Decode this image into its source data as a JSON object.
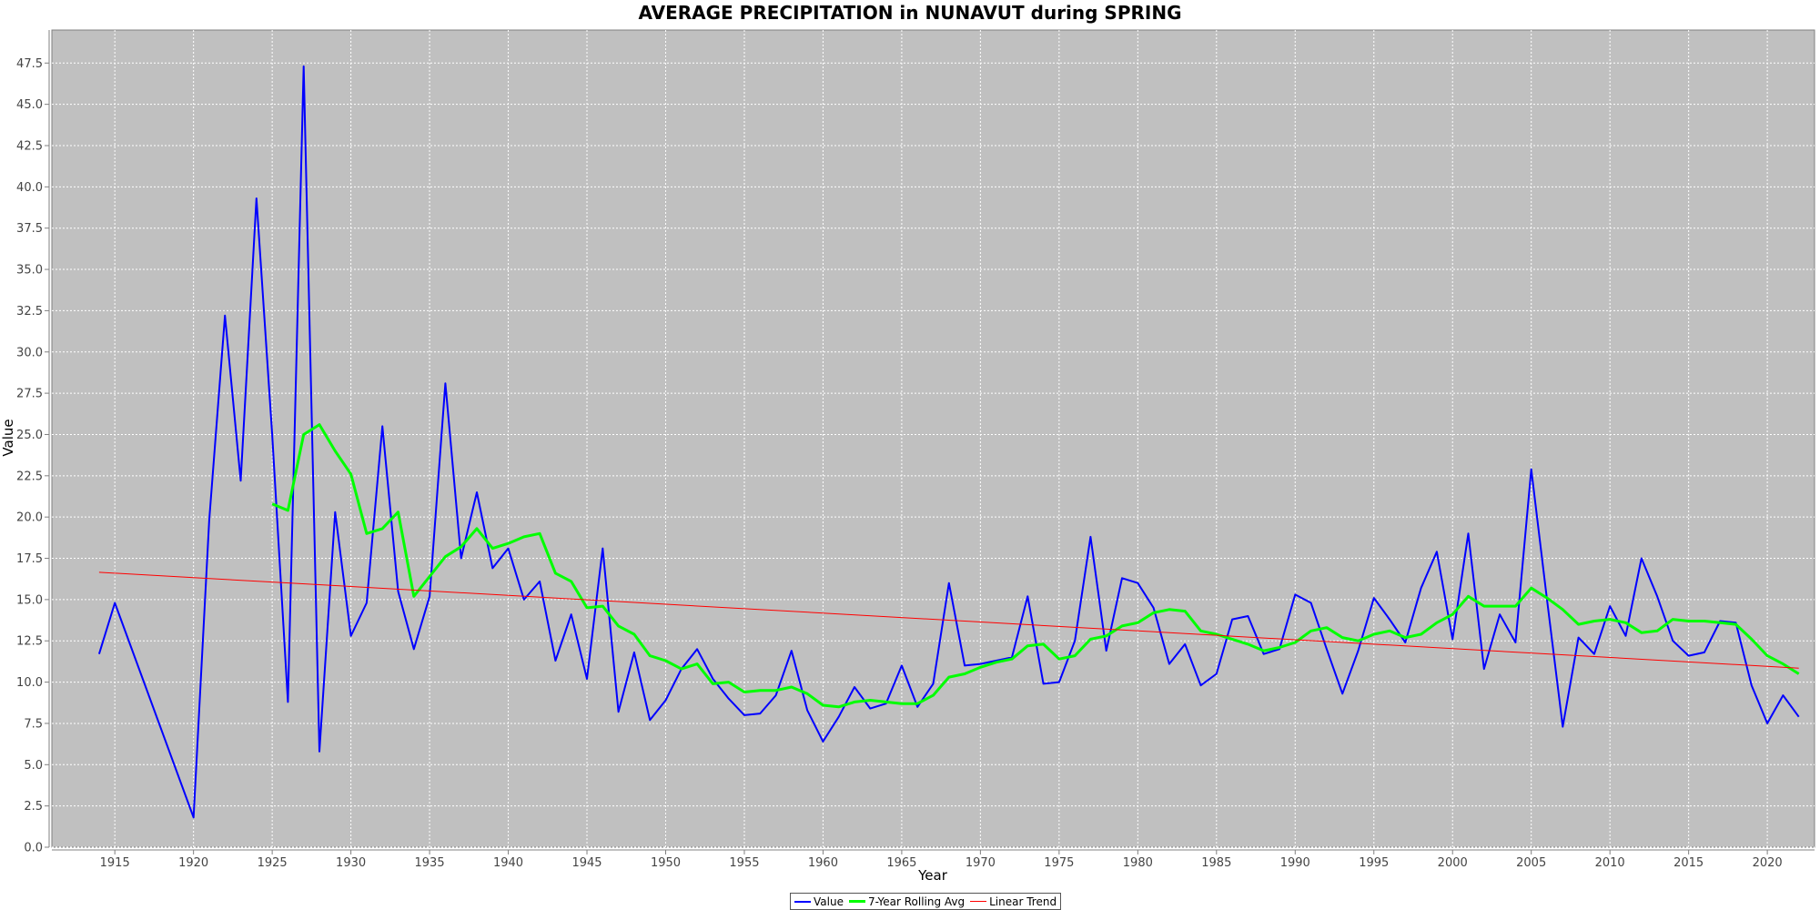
{
  "chart_data": {
    "type": "line",
    "title": "AVERAGE PRECIPITATION in NUNAVUT during SPRING",
    "xlabel": "Year",
    "ylabel": "Value",
    "xlim": [
      1911,
      2023
    ],
    "ylim": [
      0,
      49.5
    ],
    "x_ticks": [
      1915,
      1920,
      1925,
      1930,
      1935,
      1940,
      1945,
      1950,
      1955,
      1960,
      1965,
      1970,
      1975,
      1980,
      1985,
      1990,
      1995,
      2000,
      2005,
      2010,
      2015,
      2020
    ],
    "y_ticks": [
      0.0,
      2.5,
      5.0,
      7.5,
      10.0,
      12.5,
      15.0,
      17.5,
      20.0,
      22.5,
      25.0,
      27.5,
      30.0,
      32.5,
      35.0,
      37.5,
      40.0,
      42.5,
      45.0,
      47.5
    ],
    "grid": true,
    "legend_position": "bottom-center",
    "background": "#c0c0c0",
    "series": [
      {
        "name": "Value",
        "color": "#0000ff",
        "points": [
          [
            1914,
            11.7
          ],
          [
            1915,
            14.8
          ],
          [
            1920,
            1.8
          ],
          [
            1921,
            19.8
          ],
          [
            1922,
            32.2
          ],
          [
            1923,
            22.2
          ],
          [
            1924,
            39.3
          ],
          [
            1925,
            25.0
          ],
          [
            1926,
            8.8
          ],
          [
            1927,
            47.3
          ],
          [
            1928,
            5.8
          ],
          [
            1929,
            20.3
          ],
          [
            1930,
            12.8
          ],
          [
            1931,
            14.8
          ],
          [
            1932,
            25.5
          ],
          [
            1933,
            15.5
          ],
          [
            1934,
            12.0
          ],
          [
            1935,
            15.2
          ],
          [
            1936,
            28.1
          ],
          [
            1937,
            17.5
          ],
          [
            1938,
            21.5
          ],
          [
            1939,
            16.9
          ],
          [
            1940,
            18.1
          ],
          [
            1941,
            15.0
          ],
          [
            1942,
            16.1
          ],
          [
            1943,
            11.3
          ],
          [
            1944,
            14.1
          ],
          [
            1945,
            10.2
          ],
          [
            1946,
            18.1
          ],
          [
            1947,
            8.2
          ],
          [
            1948,
            11.8
          ],
          [
            1949,
            7.7
          ],
          [
            1950,
            8.9
          ],
          [
            1951,
            10.8
          ],
          [
            1952,
            12.0
          ],
          [
            1953,
            10.2
          ],
          [
            1954,
            9.0
          ],
          [
            1955,
            8.0
          ],
          [
            1956,
            8.1
          ],
          [
            1957,
            9.2
          ],
          [
            1958,
            11.9
          ],
          [
            1959,
            8.3
          ],
          [
            1960,
            6.4
          ],
          [
            1961,
            7.9
          ],
          [
            1962,
            9.7
          ],
          [
            1963,
            8.4
          ],
          [
            1964,
            8.7
          ],
          [
            1965,
            11.0
          ],
          [
            1966,
            8.5
          ],
          [
            1967,
            9.9
          ],
          [
            1968,
            16.0
          ],
          [
            1969,
            11.0
          ],
          [
            1970,
            11.1
          ],
          [
            1971,
            11.3
          ],
          [
            1972,
            11.5
          ],
          [
            1973,
            15.2
          ],
          [
            1974,
            9.9
          ],
          [
            1975,
            10.0
          ],
          [
            1976,
            12.5
          ],
          [
            1977,
            18.8
          ],
          [
            1978,
            11.9
          ],
          [
            1979,
            16.3
          ],
          [
            1980,
            16.0
          ],
          [
            1981,
            14.5
          ],
          [
            1982,
            11.1
          ],
          [
            1983,
            12.3
          ],
          [
            1984,
            9.8
          ],
          [
            1985,
            10.5
          ],
          [
            1986,
            13.8
          ],
          [
            1987,
            14.0
          ],
          [
            1988,
            11.7
          ],
          [
            1989,
            12.0
          ],
          [
            1990,
            15.3
          ],
          [
            1991,
            14.8
          ],
          [
            1992,
            12.0
          ],
          [
            1993,
            9.3
          ],
          [
            1994,
            11.9
          ],
          [
            1995,
            15.1
          ],
          [
            1996,
            13.8
          ],
          [
            1997,
            12.4
          ],
          [
            1998,
            15.7
          ],
          [
            1999,
            17.9
          ],
          [
            2000,
            12.6
          ],
          [
            2001,
            19.0
          ],
          [
            2002,
            10.8
          ],
          [
            2003,
            14.1
          ],
          [
            2004,
            12.4
          ],
          [
            2005,
            22.9
          ],
          [
            2006,
            15.0
          ],
          [
            2007,
            7.3
          ],
          [
            2008,
            12.7
          ],
          [
            2009,
            11.7
          ],
          [
            2010,
            14.6
          ],
          [
            2011,
            12.8
          ],
          [
            2012,
            17.5
          ],
          [
            2013,
            15.2
          ],
          [
            2014,
            12.5
          ],
          [
            2015,
            11.6
          ],
          [
            2016,
            11.8
          ],
          [
            2017,
            13.7
          ],
          [
            2018,
            13.6
          ],
          [
            2019,
            9.8
          ],
          [
            2020,
            7.5
          ],
          [
            2021,
            9.2
          ],
          [
            2022,
            7.9
          ]
        ]
      },
      {
        "name": "7-Year Rolling Avg",
        "color": "#00ff00",
        "points": [
          [
            1925,
            20.8
          ],
          [
            1926,
            20.4
          ],
          [
            1927,
            25.0
          ],
          [
            1928,
            25.6
          ],
          [
            1929,
            24.0
          ],
          [
            1930,
            22.6
          ],
          [
            1931,
            19.0
          ],
          [
            1932,
            19.3
          ],
          [
            1933,
            20.3
          ],
          [
            1934,
            15.2
          ],
          [
            1935,
            16.4
          ],
          [
            1936,
            17.6
          ],
          [
            1937,
            18.2
          ],
          [
            1938,
            19.3
          ],
          [
            1939,
            18.1
          ],
          [
            1940,
            18.4
          ],
          [
            1941,
            18.8
          ],
          [
            1942,
            19.0
          ],
          [
            1943,
            16.6
          ],
          [
            1944,
            16.1
          ],
          [
            1945,
            14.5
          ],
          [
            1946,
            14.6
          ],
          [
            1947,
            13.4
          ],
          [
            1948,
            12.9
          ],
          [
            1949,
            11.6
          ],
          [
            1950,
            11.3
          ],
          [
            1951,
            10.8
          ],
          [
            1952,
            11.1
          ],
          [
            1953,
            9.9
          ],
          [
            1954,
            10.0
          ],
          [
            1955,
            9.4
          ],
          [
            1956,
            9.5
          ],
          [
            1957,
            9.5
          ],
          [
            1958,
            9.7
          ],
          [
            1959,
            9.3
          ],
          [
            1960,
            8.6
          ],
          [
            1961,
            8.5
          ],
          [
            1962,
            8.8
          ],
          [
            1963,
            8.9
          ],
          [
            1964,
            8.8
          ],
          [
            1965,
            8.7
          ],
          [
            1966,
            8.7
          ],
          [
            1967,
            9.2
          ],
          [
            1968,
            10.3
          ],
          [
            1969,
            10.5
          ],
          [
            1970,
            10.9
          ],
          [
            1971,
            11.2
          ],
          [
            1972,
            11.4
          ],
          [
            1973,
            12.2
          ],
          [
            1974,
            12.3
          ],
          [
            1975,
            11.4
          ],
          [
            1976,
            11.6
          ],
          [
            1977,
            12.6
          ],
          [
            1978,
            12.8
          ],
          [
            1979,
            13.4
          ],
          [
            1980,
            13.6
          ],
          [
            1981,
            14.2
          ],
          [
            1982,
            14.4
          ],
          [
            1983,
            14.3
          ],
          [
            1984,
            13.1
          ],
          [
            1985,
            12.9
          ],
          [
            1986,
            12.6
          ],
          [
            1987,
            12.3
          ],
          [
            1988,
            11.9
          ],
          [
            1989,
            12.1
          ],
          [
            1990,
            12.4
          ],
          [
            1991,
            13.1
          ],
          [
            1992,
            13.3
          ],
          [
            1993,
            12.7
          ],
          [
            1994,
            12.5
          ],
          [
            1995,
            12.9
          ],
          [
            1996,
            13.1
          ],
          [
            1997,
            12.7
          ],
          [
            1998,
            12.9
          ],
          [
            1999,
            13.6
          ],
          [
            2000,
            14.1
          ],
          [
            2001,
            15.2
          ],
          [
            2002,
            14.6
          ],
          [
            2003,
            14.6
          ],
          [
            2004,
            14.6
          ],
          [
            2005,
            15.7
          ],
          [
            2006,
            15.1
          ],
          [
            2007,
            14.4
          ],
          [
            2008,
            13.5
          ],
          [
            2009,
            13.7
          ],
          [
            2010,
            13.8
          ],
          [
            2011,
            13.6
          ],
          [
            2012,
            13.0
          ],
          [
            2013,
            13.1
          ],
          [
            2014,
            13.8
          ],
          [
            2015,
            13.7
          ],
          [
            2016,
            13.7
          ],
          [
            2017,
            13.6
          ],
          [
            2018,
            13.5
          ],
          [
            2019,
            12.6
          ],
          [
            2020,
            11.6
          ],
          [
            2021,
            11.1
          ],
          [
            2022,
            10.5
          ]
        ]
      },
      {
        "name": "Linear Trend",
        "color": "#ff0000",
        "points": [
          [
            1914,
            16.65
          ],
          [
            2022,
            10.85
          ]
        ]
      }
    ]
  }
}
